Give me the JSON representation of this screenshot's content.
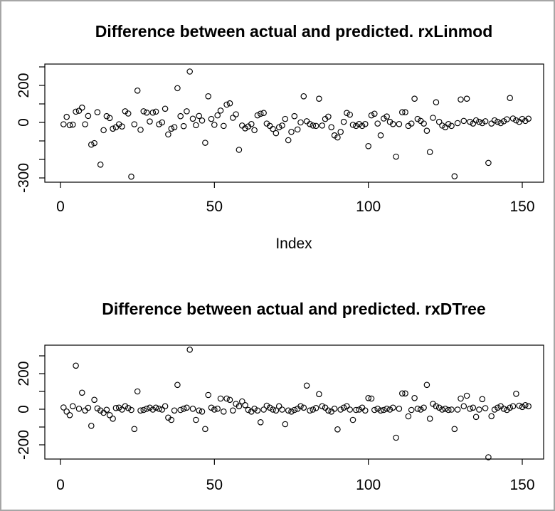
{
  "window": {
    "background": "#ffffff",
    "frame_color": "#a6a6a6",
    "draw_color": "#000000"
  },
  "chart_data": [
    {
      "type": "scatter",
      "title": "Difference between actual and predicted. rxLinmod",
      "xlabel": "Index",
      "ylabel": "",
      "marker": "open-circle",
      "grid": false,
      "legend": "none",
      "x_start": 1,
      "xlim": [
        -5,
        157
      ],
      "ylim": [
        -323,
        315
      ],
      "x_axis": {
        "ticks": [
          {
            "value": 0,
            "label": "0"
          },
          {
            "value": 50,
            "label": "50"
          },
          {
            "value": 100,
            "label": "100"
          },
          {
            "value": 150,
            "label": "150"
          }
        ]
      },
      "y_axis": {
        "tick_values": [
          300,
          200,
          100,
          0,
          -100,
          -200,
          -300
        ],
        "labeled_ticks": [
          {
            "value": 200,
            "label": "200"
          },
          {
            "value": 0,
            "label": "0"
          },
          {
            "value": -300,
            "label": "-300"
          }
        ]
      },
      "values": [
        -10,
        30,
        -15,
        -12,
        58,
        63,
        80,
        -10,
        35,
        -120,
        -112,
        55,
        -228,
        -42,
        34,
        24,
        -34,
        -26,
        -10,
        -22,
        60,
        48,
        -293,
        -10,
        172,
        -40,
        60,
        53,
        5,
        53,
        58,
        -10,
        0,
        74,
        -65,
        -34,
        -26,
        185,
        34,
        -20,
        60,
        275,
        20,
        -15,
        35,
        10,
        -110,
        141,
        19,
        -13,
        38,
        64,
        -19,
        96,
        103,
        25,
        44,
        -148,
        -17,
        -32,
        -22,
        -9,
        -42,
        38,
        47,
        51,
        -6,
        -19,
        -35,
        -58,
        -26,
        -17,
        19,
        -96,
        -51,
        34,
        -38,
        0,
        141,
        6,
        -9,
        -17,
        -19,
        128,
        -17,
        19,
        31,
        -26,
        -70,
        -81,
        -51,
        3,
        51,
        42,
        -13,
        -19,
        -9,
        -19,
        -9,
        -128,
        38,
        47,
        -6,
        -70,
        21,
        32,
        3,
        -9,
        -185,
        -9,
        55,
        55,
        -19,
        -6,
        128,
        19,
        8,
        -6,
        -45,
        -160,
        25,
        109,
        3,
        -17,
        -26,
        -9,
        -19,
        -291,
        -4,
        124,
        8,
        128,
        3,
        -6,
        11,
        3,
        -4,
        6,
        -219,
        -6,
        11,
        3,
        -4,
        6,
        17,
        132,
        21,
        11,
        3,
        19,
        8,
        20
      ]
    },
    {
      "type": "scatter",
      "title": "Difference between actual and predicted. rxDTree",
      "xlabel": "",
      "ylabel": "",
      "marker": "open-circle",
      "grid": false,
      "legend": "none",
      "x_start": 1,
      "xlim": [
        -5,
        157
      ],
      "ylim": [
        -280,
        360
      ],
      "x_axis": {
        "ticks": [
          {
            "value": 0,
            "label": "0"
          },
          {
            "value": 50,
            "label": "50"
          },
          {
            "value": 100,
            "label": "100"
          },
          {
            "value": 150,
            "label": "150"
          }
        ]
      },
      "y_axis": {
        "tick_values": [
          300,
          200,
          100,
          0,
          -100,
          -200
        ],
        "labeled_ticks": [
          {
            "value": 200,
            "label": "200"
          },
          {
            "value": 0,
            "label": "0"
          },
          {
            "value": -200,
            "label": "-200"
          }
        ]
      },
      "values": [
        10,
        -13,
        -33,
        17,
        245,
        3,
        93,
        -7,
        8,
        -93,
        53,
        5,
        -7,
        -20,
        -3,
        -33,
        -53,
        7,
        9,
        -2,
        17,
        7,
        -4,
        -111,
        100,
        -7,
        -4,
        3,
        9,
        -2,
        9,
        3,
        -2,
        17,
        -47,
        -60,
        -7,
        137,
        -4,
        3,
        9,
        335,
        3,
        -60,
        -7,
        -13,
        -111,
        80,
        9,
        -2,
        3,
        60,
        -13,
        60,
        53,
        -7,
        30,
        17,
        44,
        23,
        -4,
        -13,
        3,
        -7,
        -73,
        -2,
        20,
        9,
        -2,
        -7,
        17,
        -2,
        -84,
        -7,
        -13,
        -4,
        3,
        17,
        9,
        133,
        -7,
        -2,
        7,
        85,
        17,
        9,
        -7,
        -13,
        3,
        -113,
        -2,
        9,
        17,
        -2,
        -60,
        -4,
        -2,
        9,
        -7,
        63,
        60,
        -4,
        3,
        -7,
        -4,
        3,
        -2,
        9,
        -160,
        3,
        89,
        89,
        -40,
        -4,
        63,
        3,
        -2,
        9,
        137,
        -53,
        30,
        17,
        9,
        -2,
        3,
        -4,
        -2,
        -111,
        -2,
        60,
        17,
        76,
        3,
        9,
        -43,
        -2,
        57,
        6,
        -270,
        -39,
        -2,
        9,
        17,
        3,
        -4,
        9,
        17,
        87,
        20,
        13,
        23,
        17
      ]
    }
  ]
}
